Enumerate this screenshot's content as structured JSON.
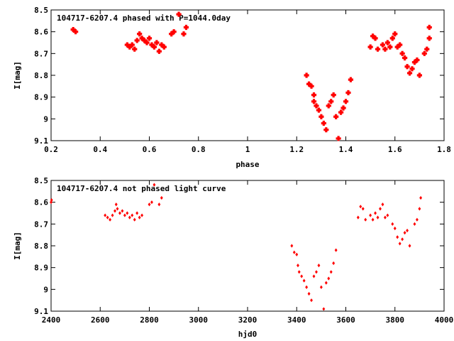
{
  "chart_data": [
    {
      "type": "scatter",
      "title": "104717-6207.4 phased with P=1044.0day",
      "xlabel": "phase",
      "ylabel": "I[mag]",
      "xlim": [
        0.2,
        1.8
      ],
      "ylim": [
        8.5,
        9.1
      ],
      "y_inverted": true,
      "xticks": [
        "0.2",
        "0.4",
        "0.6",
        "0.8",
        "1",
        "1.2",
        "1.4",
        "1.6",
        "1.8"
      ],
      "yticks": [
        "8.5",
        "8.6",
        "8.7",
        "8.8",
        "8.9",
        "9",
        "9.1"
      ],
      "marker": "cross",
      "color": "#ff0000",
      "points": [
        [
          0.29,
          8.59
        ],
        [
          0.3,
          8.6
        ],
        [
          0.51,
          8.66
        ],
        [
          0.52,
          8.67
        ],
        [
          0.53,
          8.66
        ],
        [
          0.54,
          8.68
        ],
        [
          0.55,
          8.64
        ],
        [
          0.56,
          8.61
        ],
        [
          0.57,
          8.63
        ],
        [
          0.58,
          8.64
        ],
        [
          0.59,
          8.65
        ],
        [
          0.6,
          8.63
        ],
        [
          0.61,
          8.66
        ],
        [
          0.62,
          8.67
        ],
        [
          0.63,
          8.65
        ],
        [
          0.64,
          8.69
        ],
        [
          0.65,
          8.66
        ],
        [
          0.66,
          8.67
        ],
        [
          0.69,
          8.61
        ],
        [
          0.7,
          8.6
        ],
        [
          0.72,
          8.52
        ],
        [
          0.74,
          8.61
        ],
        [
          0.75,
          8.58
        ],
        [
          1.24,
          8.8
        ],
        [
          1.25,
          8.84
        ],
        [
          1.26,
          8.85
        ],
        [
          1.27,
          8.89
        ],
        [
          1.27,
          8.92
        ],
        [
          1.28,
          8.94
        ],
        [
          1.29,
          8.96
        ],
        [
          1.3,
          8.99
        ],
        [
          1.31,
          9.02
        ],
        [
          1.32,
          9.05
        ],
        [
          1.33,
          8.94
        ],
        [
          1.34,
          8.92
        ],
        [
          1.35,
          8.89
        ],
        [
          1.36,
          8.99
        ],
        [
          1.37,
          9.09
        ],
        [
          1.38,
          8.97
        ],
        [
          1.39,
          8.95
        ],
        [
          1.4,
          8.92
        ],
        [
          1.41,
          8.88
        ],
        [
          1.42,
          8.82
        ],
        [
          1.5,
          8.67
        ],
        [
          1.51,
          8.62
        ],
        [
          1.52,
          8.63
        ],
        [
          1.53,
          8.68
        ],
        [
          1.55,
          8.66
        ],
        [
          1.56,
          8.68
        ],
        [
          1.57,
          8.65
        ],
        [
          1.58,
          8.67
        ],
        [
          1.59,
          8.63
        ],
        [
          1.6,
          8.61
        ],
        [
          1.61,
          8.67
        ],
        [
          1.62,
          8.66
        ],
        [
          1.63,
          8.7
        ],
        [
          1.64,
          8.72
        ],
        [
          1.65,
          8.76
        ],
        [
          1.66,
          8.79
        ],
        [
          1.67,
          8.77
        ],
        [
          1.68,
          8.74
        ],
        [
          1.69,
          8.73
        ],
        [
          1.7,
          8.8
        ],
        [
          1.72,
          8.7
        ],
        [
          1.73,
          8.68
        ],
        [
          1.74,
          8.63
        ],
        [
          1.74,
          8.58
        ]
      ]
    },
    {
      "type": "scatter",
      "title": "104717-6207.4 not phased light curve",
      "xlabel": "hjd0",
      "ylabel": "I[mag]",
      "xlim": [
        2400,
        4000
      ],
      "ylim": [
        8.5,
        9.1
      ],
      "y_inverted": true,
      "xticks": [
        "2400",
        "2600",
        "2800",
        "3000",
        "3200",
        "3400",
        "3600",
        "3800",
        "4000"
      ],
      "yticks": [
        "8.5",
        "8.6",
        "8.7",
        "8.8",
        "8.9",
        "9",
        "9.1"
      ],
      "marker": "diamond",
      "color": "#ff0000",
      "points": [
        [
          2400,
          8.6
        ],
        [
          2402,
          8.59
        ],
        [
          2620,
          8.66
        ],
        [
          2630,
          8.67
        ],
        [
          2640,
          8.68
        ],
        [
          2650,
          8.66
        ],
        [
          2660,
          8.64
        ],
        [
          2665,
          8.61
        ],
        [
          2670,
          8.63
        ],
        [
          2680,
          8.65
        ],
        [
          2690,
          8.64
        ],
        [
          2700,
          8.66
        ],
        [
          2710,
          8.65
        ],
        [
          2720,
          8.67
        ],
        [
          2730,
          8.66
        ],
        [
          2740,
          8.68
        ],
        [
          2750,
          8.65
        ],
        [
          2760,
          8.67
        ],
        [
          2770,
          8.66
        ],
        [
          2800,
          8.61
        ],
        [
          2810,
          8.6
        ],
        [
          2820,
          8.52
        ],
        [
          2840,
          8.61
        ],
        [
          2850,
          8.58
        ],
        [
          3380,
          8.8
        ],
        [
          3390,
          8.83
        ],
        [
          3400,
          8.84
        ],
        [
          3405,
          8.89
        ],
        [
          3410,
          8.92
        ],
        [
          3420,
          8.94
        ],
        [
          3430,
          8.96
        ],
        [
          3440,
          8.99
        ],
        [
          3450,
          9.02
        ],
        [
          3460,
          9.05
        ],
        [
          3470,
          8.94
        ],
        [
          3480,
          8.92
        ],
        [
          3490,
          8.89
        ],
        [
          3500,
          8.99
        ],
        [
          3510,
          9.09
        ],
        [
          3520,
          8.97
        ],
        [
          3530,
          8.95
        ],
        [
          3540,
          8.92
        ],
        [
          3550,
          8.88
        ],
        [
          3560,
          8.82
        ],
        [
          3650,
          8.67
        ],
        [
          3660,
          8.62
        ],
        [
          3670,
          8.63
        ],
        [
          3680,
          8.68
        ],
        [
          3700,
          8.66
        ],
        [
          3710,
          8.68
        ],
        [
          3720,
          8.65
        ],
        [
          3730,
          8.67
        ],
        [
          3740,
          8.63
        ],
        [
          3750,
          8.61
        ],
        [
          3760,
          8.67
        ],
        [
          3770,
          8.66
        ],
        [
          3790,
          8.7
        ],
        [
          3800,
          8.72
        ],
        [
          3810,
          8.76
        ],
        [
          3820,
          8.79
        ],
        [
          3830,
          8.77
        ],
        [
          3840,
          8.74
        ],
        [
          3850,
          8.73
        ],
        [
          3860,
          8.8
        ],
        [
          3880,
          8.7
        ],
        [
          3890,
          8.68
        ],
        [
          3900,
          8.63
        ],
        [
          3905,
          8.58
        ]
      ]
    }
  ]
}
